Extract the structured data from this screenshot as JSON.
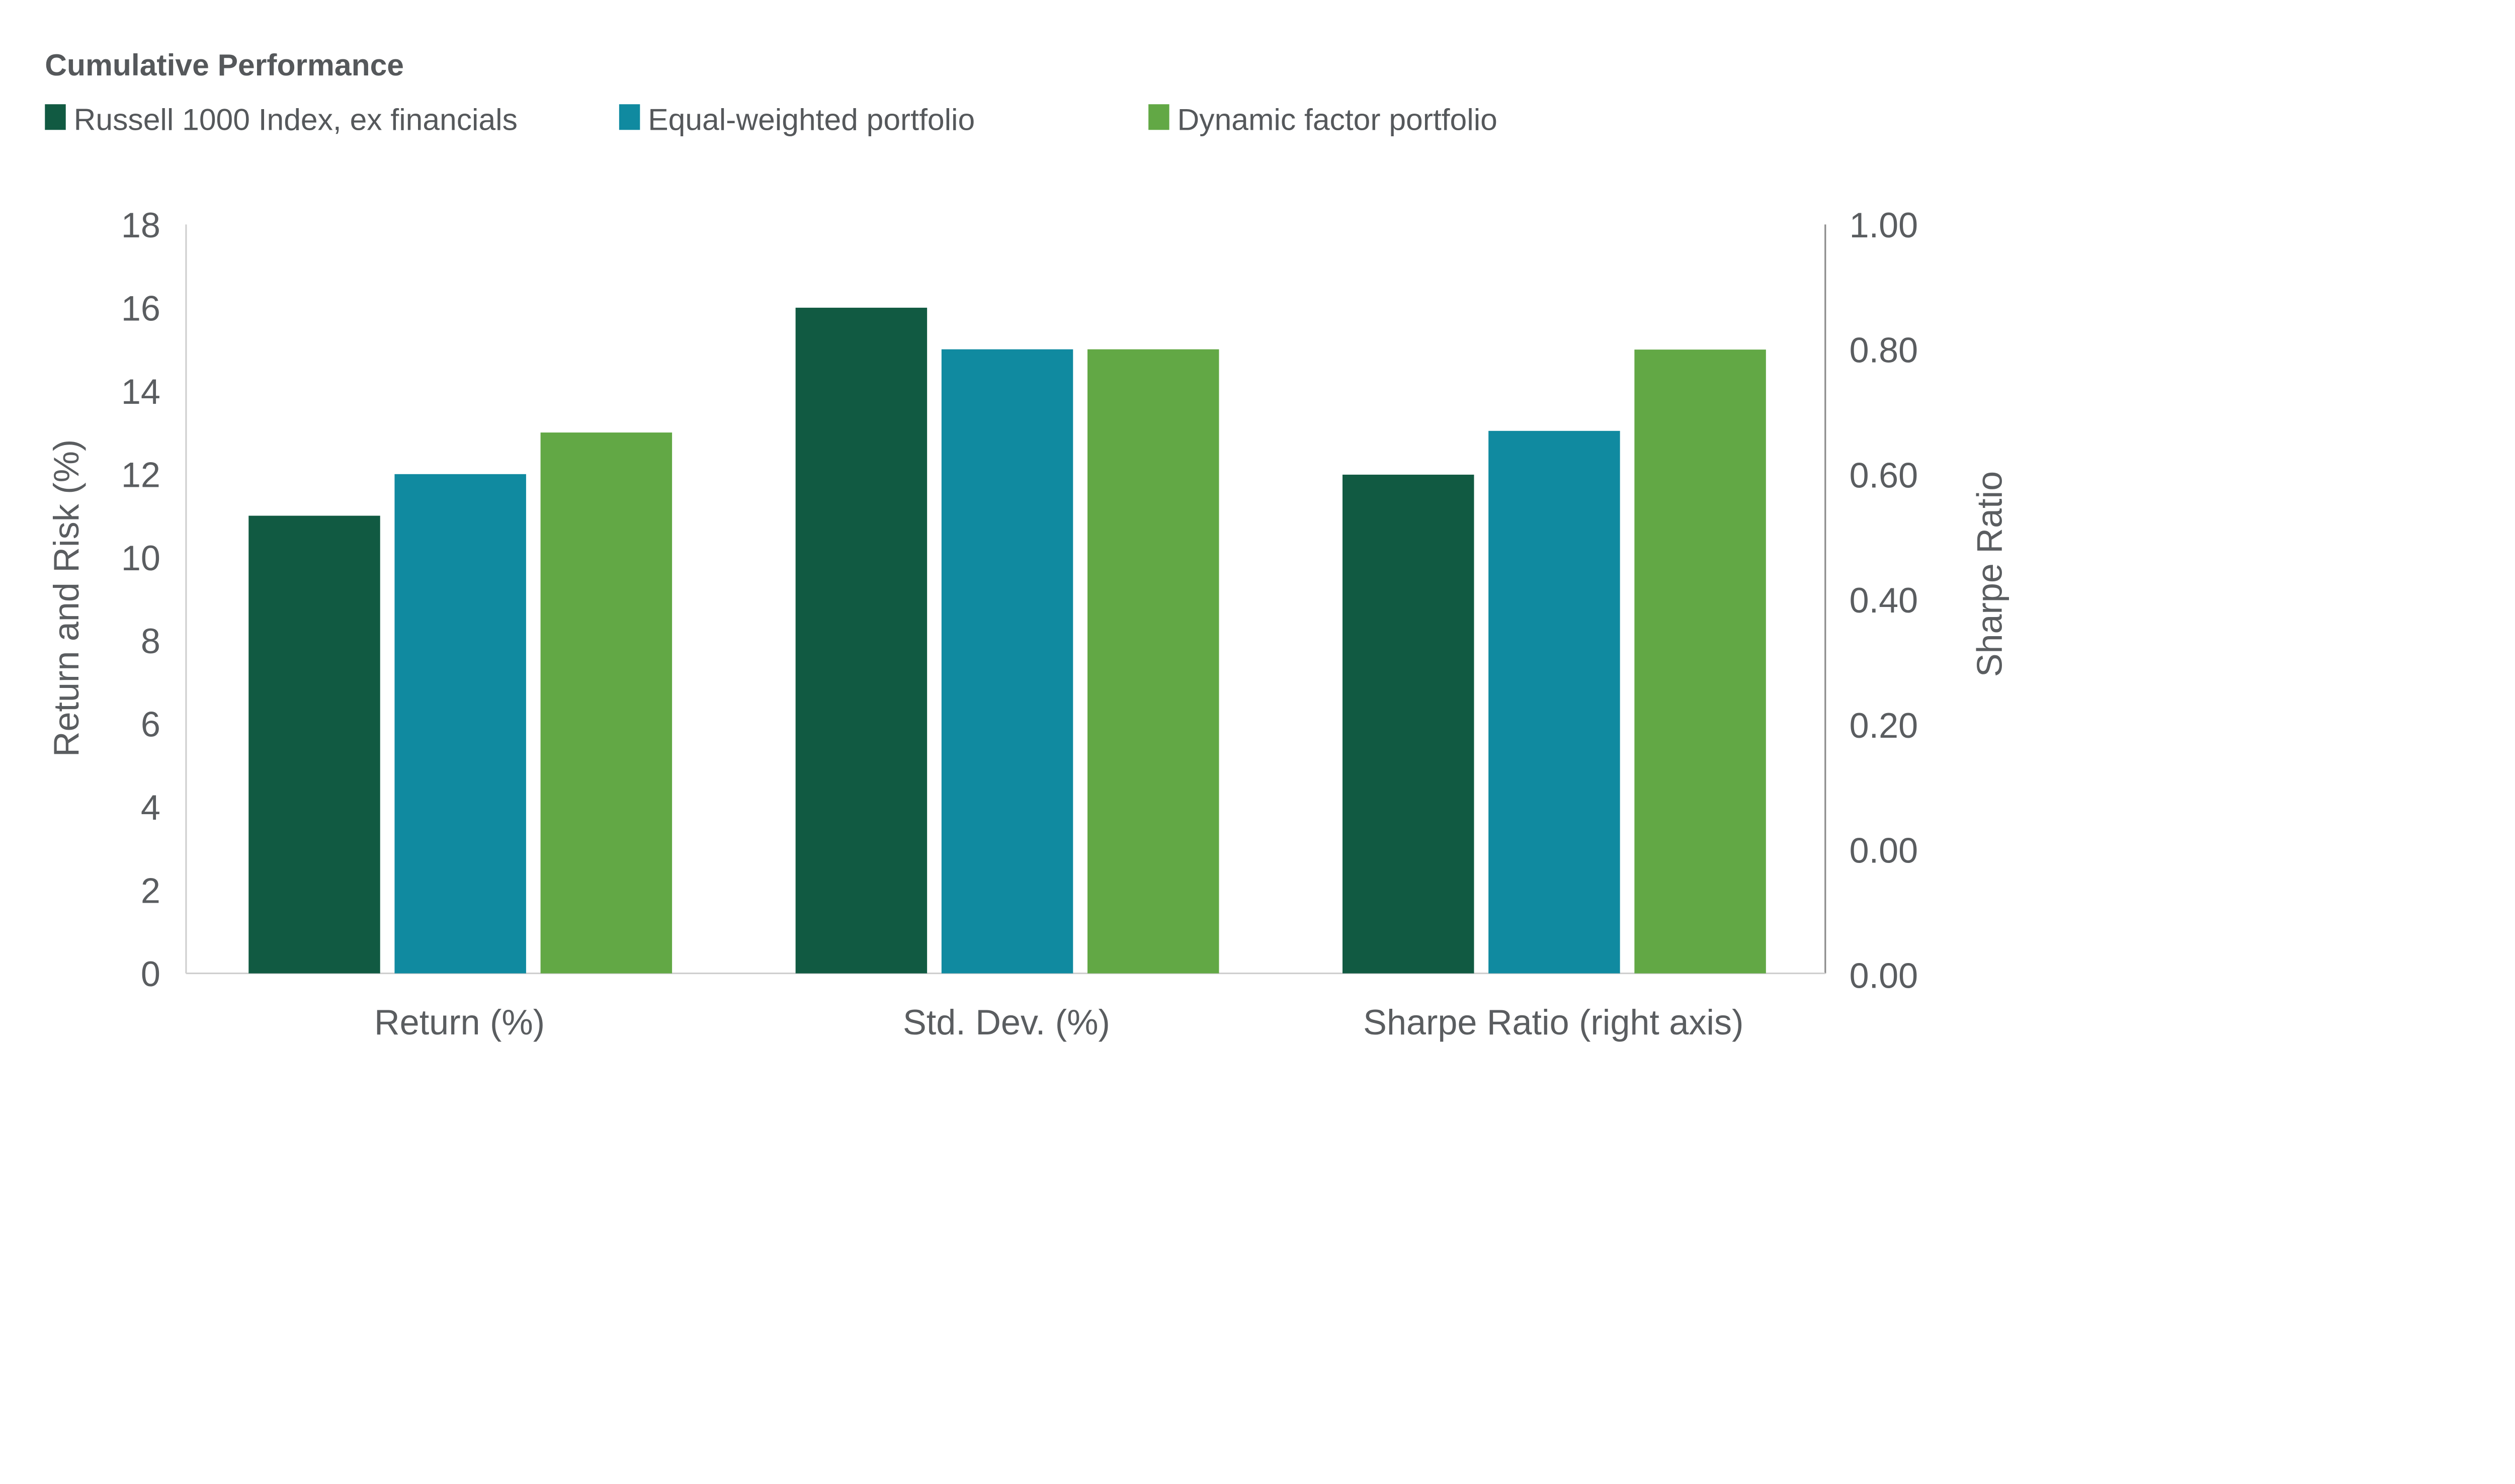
{
  "chart_data": {
    "type": "bar",
    "title": "Cumulative Performance",
    "categories": [
      "Return (%)",
      "Std. Dev. (%)",
      "Sharpe Ratio (right axis)"
    ],
    "series": [
      {
        "name": "Russell 1000 Index, ex financials",
        "color": "#115a42",
        "values": [
          11,
          16,
          0.6
        ]
      },
      {
        "name": "Equal-weighted portfolio",
        "color": "#108aa0",
        "values": [
          12,
          15,
          0.67
        ]
      },
      {
        "name": "Dynamic factor portfolio",
        "color": "#62a845",
        "values": [
          13,
          15,
          0.8
        ]
      }
    ],
    "right_axis_categories": [
      "Sharpe Ratio (right axis)"
    ],
    "ylabel": "Return and Risk (%)",
    "ylabel_right": "Sharpe Ratio",
    "ylim": [
      0,
      18
    ],
    "ylim_right": [
      0,
      1.0
    ],
    "yticks": [
      "18",
      "16",
      "14",
      "12",
      "10",
      "8",
      "6",
      "4",
      "2",
      "0"
    ],
    "yticks_right": [
      "1.00",
      "0.80",
      "0.60",
      "0.40",
      "0.20",
      "0.00",
      "0.00"
    ],
    "legend_position": "top-left",
    "grid": false
  }
}
